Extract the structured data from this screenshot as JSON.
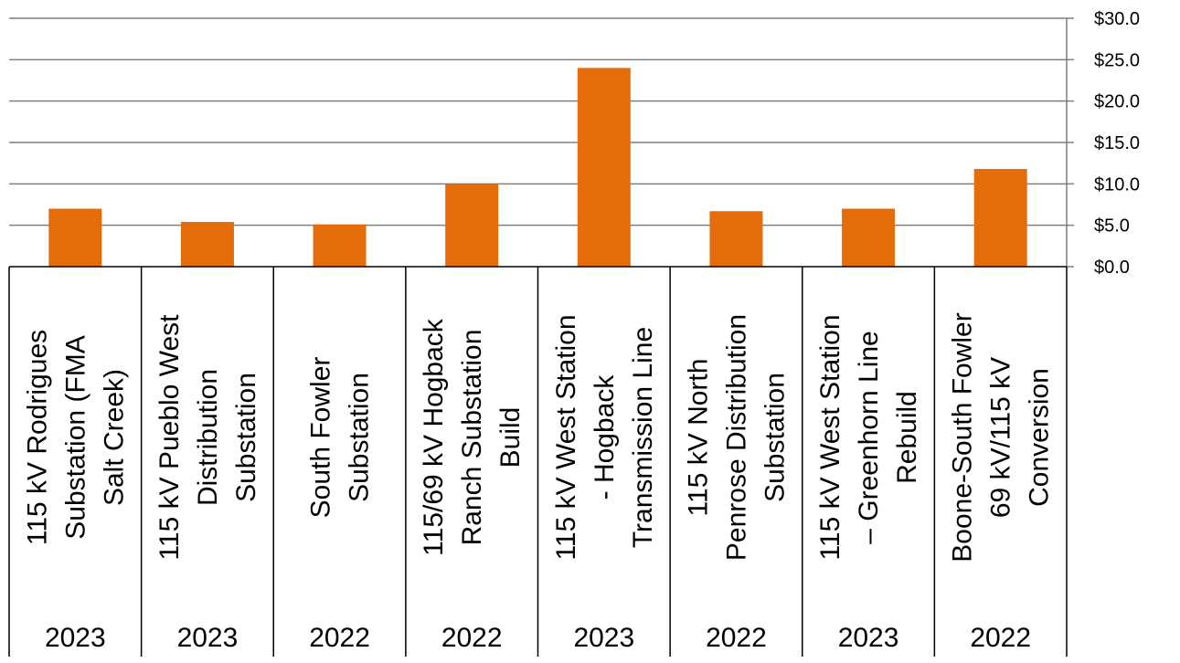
{
  "chart_data": {
    "type": "bar",
    "title": "",
    "xlabel": "",
    "ylabel": "",
    "ylim": [
      0,
      30
    ],
    "ytick_values": [
      0,
      5,
      10,
      15,
      20,
      25,
      30
    ],
    "ytick_labels": [
      "$0.0",
      "$5.0",
      "$10.0",
      "$15.0",
      "$20.0",
      "$25.0",
      "$30.0"
    ],
    "y_axis_side": "right",
    "grid": true,
    "legend": "none",
    "bar_color": "#E46C0A",
    "categories": [
      [
        "115 kV Rodrigues",
        "Substation (FMA",
        "Salt Creek)"
      ],
      [
        "115 kV Pueblo West",
        "Distribution",
        "Substation"
      ],
      [
        "South Fowler",
        "Substation"
      ],
      [
        "115/69 kV Hogback",
        "Ranch Substation",
        "Build"
      ],
      [
        "115 kV West Station",
        "- Hogback",
        "Transmission Line"
      ],
      [
        "115 kV North",
        "Penrose Distribution",
        "Substation"
      ],
      [
        "115 kV West Station",
        "– Greenhorn Line",
        "Rebuild"
      ],
      [
        "Boone-South Fowler",
        "69 kV/115 kV",
        "Conversion"
      ]
    ],
    "years": [
      "2023",
      "2023",
      "2022",
      "2022",
      "2023",
      "2022",
      "2023",
      "2022"
    ],
    "values": [
      7.0,
      5.4,
      5.1,
      10.0,
      24.0,
      6.7,
      7.0,
      11.8
    ]
  }
}
